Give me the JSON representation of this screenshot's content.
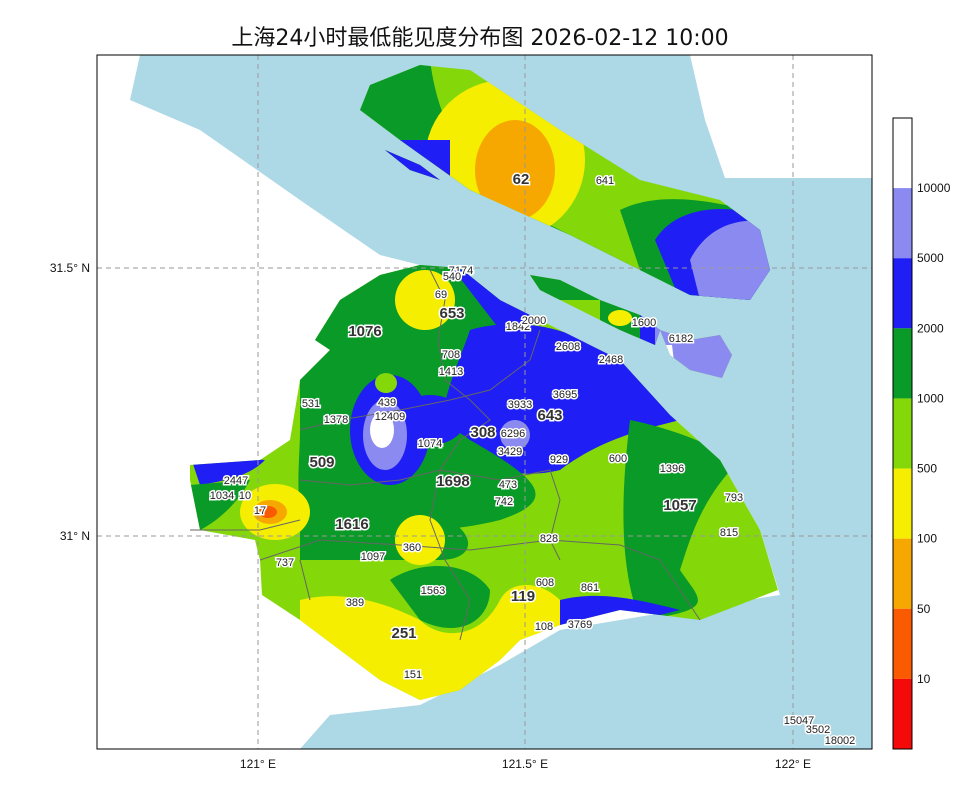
{
  "title": "上海24小时最低能见度分布图 2026-02-12 10:00",
  "axes": {
    "x_ticks": [
      "121° E",
      "121.5° E",
      "122° E"
    ],
    "y_ticks": [
      "31.5° N",
      "31° N"
    ]
  },
  "legend": {
    "labels": [
      "10000",
      "5000",
      "2000",
      "1000",
      "500",
      "100",
      "50",
      "10"
    ],
    "colors": [
      "#ffffff",
      "#8a8af0",
      "#1e1ef5",
      "#0a9a28",
      "#84d80a",
      "#f5ee00",
      "#f7a800",
      "#fa5a00",
      "#f50a0a"
    ]
  },
  "colors": {
    "sea": "#add8e6",
    "land_outside": "#ffffff",
    "border": "#666666"
  },
  "stations": [
    "62",
    "641",
    "7174",
    "540",
    "69",
    "653",
    "1842",
    "2000",
    "1600",
    "6182",
    "1076",
    "2608",
    "2468",
    "708",
    "1413",
    "3695",
    "531",
    "439",
    "1378",
    "12409",
    "3933",
    "643",
    "308",
    "6296",
    "1074",
    "3429",
    "929",
    "600",
    "1396",
    "509",
    "2447",
    "1034",
    "10",
    "1698",
    "473",
    "742",
    "793",
    "17",
    "1057",
    "1616",
    "828",
    "815",
    "360",
    "1097",
    "737",
    "608",
    "861",
    "1563",
    "119",
    "389",
    "251",
    "108",
    "3769",
    "151",
    "15047",
    "3502",
    "18002"
  ]
}
